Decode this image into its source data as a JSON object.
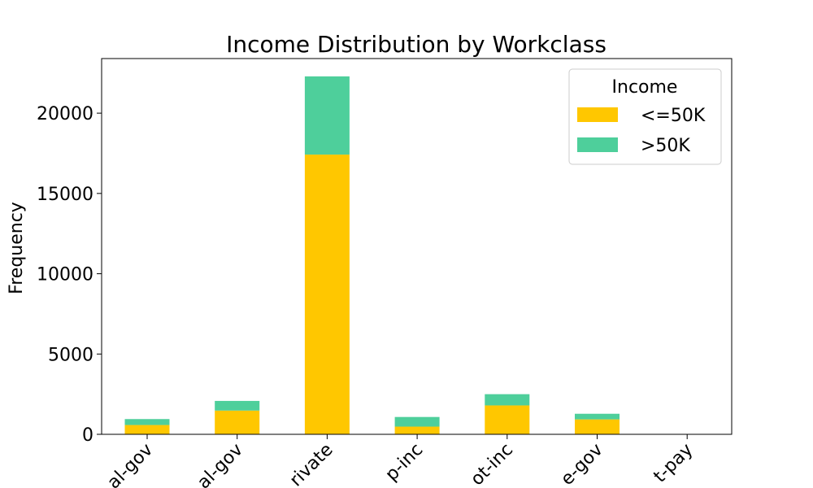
{
  "chart_data": {
    "type": "bar",
    "stacked": true,
    "title": "Income Distribution by Workclass",
    "xlabel": "",
    "ylabel": "Frequency",
    "ylim": [
      0,
      23400
    ],
    "yticks": [
      0,
      5000,
      10000,
      15000,
      20000
    ],
    "categories": [
      "al-gov",
      "al-gov",
      "rivate",
      "p-inc",
      "ot-inc",
      "e-gov",
      "t-pay"
    ],
    "series": [
      {
        "name": "<=50K",
        "color": "#ffc700",
        "values": [
          580,
          1480,
          17420,
          480,
          1800,
          930,
          14
        ]
      },
      {
        "name": ">50K",
        "color": "#4ecf9b",
        "values": [
          370,
          600,
          4870,
          600,
          700,
          350,
          0
        ]
      }
    ],
    "legend": {
      "title": "Income",
      "position": "top-right"
    },
    "grid": false
  }
}
